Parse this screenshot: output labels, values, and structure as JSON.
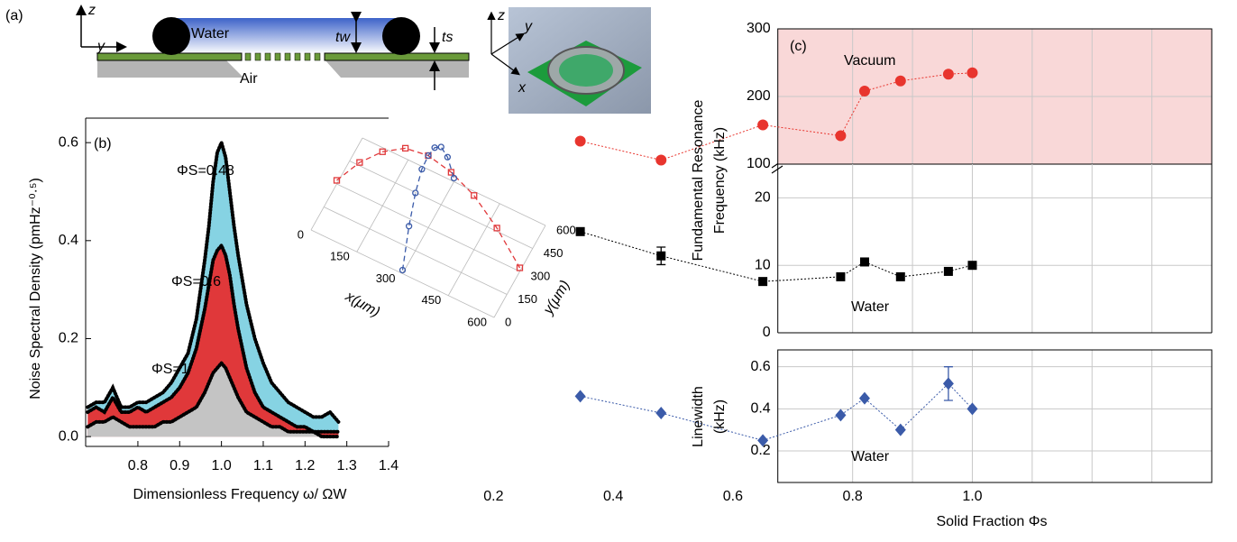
{
  "diagram": {
    "label": "(a)",
    "axis_z": "z",
    "axis_y": "y",
    "water": "Water",
    "air": "Air",
    "t_w": "tw",
    "t_s": "ts",
    "inset_z": "z",
    "inset_y": "y",
    "inset_x": "x"
  },
  "chart_data": [
    {
      "type": "area",
      "label": "(b)",
      "xlabel": "Dimensionless Frequency ω/ ΩW",
      "ylabel": "Noise Spectral Density (pmHz⁻⁰·⁵)",
      "x": [
        0.68,
        0.7,
        0.72,
        0.74,
        0.76,
        0.78,
        0.8,
        0.82,
        0.84,
        0.86,
        0.88,
        0.9,
        0.92,
        0.94,
        0.96,
        0.97,
        0.98,
        0.99,
        1.0,
        1.01,
        1.02,
        1.03,
        1.04,
        1.06,
        1.08,
        1.1,
        1.12,
        1.14,
        1.16,
        1.18,
        1.2,
        1.22,
        1.24,
        1.26,
        1.28
      ],
      "xlim": [
        0.675,
        1.4
      ],
      "xticks": [
        0.8,
        0.9,
        {
          "value": 1,
          "label": "1.0"
        },
        1.1,
        1.2,
        1.3,
        1.4
      ],
      "ylim": [
        -0.02,
        0.65
      ],
      "yticks": [
        {
          "value": 0,
          "label": "0.0"
        },
        0.2,
        0.4,
        0.6
      ],
      "series": [
        {
          "name": "ΦS=0.48",
          "color": "#86d3e3",
          "values": [
            0.06,
            0.07,
            0.07,
            0.1,
            0.06,
            0.06,
            0.07,
            0.07,
            0.08,
            0.09,
            0.11,
            0.14,
            0.17,
            0.24,
            0.36,
            0.43,
            0.52,
            0.58,
            0.6,
            0.57,
            0.5,
            0.43,
            0.37,
            0.27,
            0.2,
            0.15,
            0.11,
            0.09,
            0.07,
            0.06,
            0.05,
            0.04,
            0.04,
            0.05,
            0.03
          ]
        },
        {
          "name": "ΦS=0.6",
          "color": "#e0383a",
          "values": [
            0.05,
            0.06,
            0.05,
            0.08,
            0.05,
            0.05,
            0.06,
            0.05,
            0.06,
            0.07,
            0.08,
            0.1,
            0.13,
            0.18,
            0.26,
            0.31,
            0.36,
            0.38,
            0.39,
            0.37,
            0.33,
            0.27,
            0.22,
            0.14,
            0.09,
            0.06,
            0.05,
            0.04,
            0.03,
            0.02,
            0.02,
            0.01,
            0.01,
            0.01,
            0.01
          ]
        },
        {
          "name": "ΦS=1",
          "color": "#c4c4c4",
          "values": [
            0.02,
            0.03,
            0.03,
            0.04,
            0.03,
            0.02,
            0.02,
            0.02,
            0.02,
            0.03,
            0.03,
            0.04,
            0.05,
            0.06,
            0.09,
            0.11,
            0.13,
            0.14,
            0.15,
            0.14,
            0.12,
            0.1,
            0.08,
            0.05,
            0.04,
            0.03,
            0.02,
            0.02,
            0.01,
            0.01,
            0.01,
            0.01,
            0.0,
            0.0,
            0.0
          ]
        }
      ]
    },
    {
      "type": "scatter3d",
      "xlabel": "x(μm)",
      "ylabel": "y(μm)",
      "xlim": [
        0,
        600
      ],
      "ylim": [
        0,
        600
      ],
      "xticks": [
        0,
        150,
        300,
        450,
        600
      ],
      "yticks": [
        0,
        150,
        300,
        450,
        600
      ],
      "series": [
        {
          "color": "#e0383a",
          "marker": "square",
          "x": [
            0,
            75,
            150,
            225,
            300,
            375,
            450,
            525,
            600
          ],
          "y": [
            300,
            300,
            300,
            300,
            300,
            300,
            300,
            300,
            300
          ],
          "z": [
            0.05,
            0.45,
            0.75,
            0.95,
            1.0,
            0.92,
            0.75,
            0.45,
            0.05
          ]
        },
        {
          "color": "#3b5ba9",
          "marker": "circle",
          "x": [
            300,
            300,
            300,
            300,
            300,
            300,
            300,
            300,
            300
          ],
          "y": [
            0,
            75,
            150,
            225,
            300,
            375,
            450,
            525,
            600
          ],
          "z": [
            0.05,
            0.5,
            0.8,
            0.97,
            1.0,
            0.95,
            0.8,
            0.5,
            0.05
          ]
        }
      ]
    },
    {
      "type": "line",
      "label": "(c)",
      "annotation": "Vacuum",
      "background": "#f9d8d8",
      "ylim": [
        100,
        300
      ],
      "yticks": [
        100,
        200,
        300
      ],
      "x": [
        0.345,
        0.48,
        0.65,
        0.78,
        0.82,
        0.88,
        0.96,
        1.0
      ],
      "series": [
        {
          "color": "#e8352e",
          "marker": "circle",
          "values": [
            134,
            106,
            158,
            142,
            208,
            223,
            233,
            235
          ]
        }
      ]
    },
    {
      "type": "line",
      "annotation": "Water",
      "ylabel": [
        "Fundamental Resonance",
        "Frequency (kHz)"
      ],
      "ylim": [
        0,
        25
      ],
      "yticks": [
        0,
        10,
        20
      ],
      "x": [
        0.345,
        0.48,
        0.65,
        0.78,
        0.82,
        0.88,
        0.96,
        1.0
      ],
      "series": [
        {
          "color": "#000000",
          "marker": "square",
          "values": [
            15,
            11.4,
            7.6,
            8.3,
            10.5,
            8.3,
            9.1,
            10
          ],
          "errors": [
            null,
            1.3,
            null,
            null,
            null,
            null,
            null,
            null
          ]
        }
      ]
    },
    {
      "type": "line",
      "annotation": "Water",
      "ylabel": [
        "Linewidth",
        "(kHz)"
      ],
      "xlabel": "Solid Fraction Φs",
      "ylim": [
        0.05,
        0.68
      ],
      "yticks": [
        0.2,
        0.4,
        0.6
      ],
      "xlim": [
        0.19,
        1.1
      ],
      "xticks": [
        0.2,
        0.4,
        0.6,
        0.8,
        {
          "value": 1,
          "label": "1.0"
        }
      ],
      "x": [
        0.345,
        0.48,
        0.65,
        0.78,
        0.82,
        0.88,
        0.96,
        1.0
      ],
      "series": [
        {
          "color": "#3b5ba9",
          "marker": "diamond",
          "values": [
            0.46,
            0.38,
            0.25,
            0.37,
            0.45,
            0.3,
            0.52,
            0.4
          ],
          "errors": [
            null,
            null,
            null,
            null,
            null,
            null,
            0.08,
            null
          ]
        }
      ]
    }
  ]
}
